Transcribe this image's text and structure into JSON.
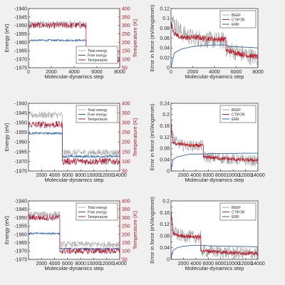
{
  "figure": {
    "background": "#f0f0f0",
    "axes_background": "#ffffff",
    "colors": {
      "total": "#b0b0b0",
      "free": "#1f5fb5",
      "temp": "#b0203a",
      "beef": "#a8a8a8",
      "ctifor": "#c0202e",
      "err": "#2f66b8",
      "right_axis": "#a61c2a"
    }
  },
  "chart_data": [
    {
      "type": "line",
      "xlabel": "Molecular-dynamics step",
      "ylabel": "Energy (eV)",
      "y2label": "Temperature (K)",
      "xlim": [
        0,
        8000
      ],
      "xticks": [
        0,
        2000,
        4000,
        6000,
        8000
      ],
      "ylim": [
        -1975,
        -1940
      ],
      "yticks": [
        -1975,
        -1970,
        -1965,
        -1960,
        -1955,
        -1950,
        -1945,
        -1940
      ],
      "y2lim": [
        50,
        400
      ],
      "y2ticks": [
        50,
        100,
        150,
        200,
        250,
        300,
        350,
        400
      ],
      "legend": {
        "position": "bottom-right",
        "entries": [
          "Total energy",
          "Free energy",
          "Temperature"
        ]
      },
      "switch_x": 5050,
      "series": [
        {
          "name": "Total energy",
          "axis": "left",
          "x": [
            0,
            5050,
            5050,
            8000
          ],
          "y": [
            -1949,
            -1949,
            -1966.3,
            -1966.3
          ],
          "noise": 1.8
        },
        {
          "name": "Free energy",
          "axis": "left",
          "x": [
            0,
            5050,
            5050,
            8000
          ],
          "y": [
            -1958.8,
            -1958.8,
            -1969.2,
            -1969.2
          ],
          "noise": 0.6
        },
        {
          "name": "Temperature",
          "axis": "right",
          "x": [
            0,
            5050,
            5050,
            8000
          ],
          "y": [
            300,
            300,
            100,
            100
          ],
          "noise": 18
        }
      ]
    },
    {
      "type": "line",
      "xlabel": "Molecular-dynamics step",
      "ylabel": "Error in force (eV/Angstrom)",
      "xlim": [
        0,
        8000
      ],
      "xticks": [
        0,
        2000,
        4000,
        6000,
        8000
      ],
      "ylim": [
        0,
        0.12
      ],
      "yticks": [
        0,
        0.02,
        0.04,
        0.06,
        0.08,
        0.1,
        0.12
      ],
      "legend": {
        "position": "top-right",
        "entries": [
          "BEEF",
          "CTIFOR",
          "ERR"
        ]
      },
      "switch_x": 5050,
      "series": [
        {
          "name": "BEEF",
          "x": [
            0,
            300,
            1000,
            2000,
            3000,
            4000,
            5050,
            5050,
            6000,
            7000,
            8000
          ],
          "y": [
            0.1,
            0.09,
            0.07,
            0.06,
            0.058,
            0.055,
            0.055,
            0.04,
            0.032,
            0.025,
            0.02
          ],
          "noise": 0.018
        },
        {
          "name": "CTIFOR",
          "x": [
            0,
            300,
            1000,
            2000,
            3000,
            4000,
            5050,
            5050,
            6000,
            7000,
            8000
          ],
          "y": [
            0.09,
            0.07,
            0.06,
            0.062,
            0.06,
            0.058,
            0.058,
            0.035,
            0.03,
            0.025,
            0.022
          ],
          "noise": 0.005
        },
        {
          "name": "ERR",
          "x": [
            0,
            300,
            1000,
            2000,
            3000,
            4000,
            5050,
            5500,
            6500,
            7500,
            8000
          ],
          "y": [
            0.0,
            0.03,
            0.038,
            0.043,
            0.045,
            0.046,
            0.046,
            0.043,
            0.042,
            0.041,
            0.04
          ],
          "noise": 0
        }
      ]
    },
    {
      "type": "line",
      "xlabel": "Molecular-dynamics step",
      "ylabel": "Energy (eV)",
      "y2label": "Temperature (K)",
      "xlim": [
        0,
        14000
      ],
      "xticks": [
        2000,
        4000,
        6000,
        8000,
        10000,
        12000,
        14000
      ],
      "ylim": [
        -1975,
        -1940
      ],
      "yticks": [
        -1975,
        -1970,
        -1965,
        -1960,
        -1955,
        -1950,
        -1945,
        -1940
      ],
      "y2lim": [
        50,
        400
      ],
      "y2ticks": [
        50,
        100,
        150,
        200,
        250,
        300,
        350,
        400
      ],
      "legend": {
        "position": "top-right",
        "entries": [
          "Total energy",
          "Free energy",
          "Temperature"
        ]
      },
      "switch_x": 5200,
      "series": [
        {
          "name": "Total energy",
          "axis": "left",
          "x": [
            0,
            5200,
            5200,
            14000
          ],
          "y": [
            -1946,
            -1946,
            -1965.5,
            -1965.5
          ],
          "noise": 1.8
        },
        {
          "name": "Free energy",
          "axis": "left",
          "x": [
            0,
            5200,
            5200,
            14000
          ],
          "y": [
            -1955.5,
            -1955.5,
            -1967.5,
            -1967.5
          ],
          "noise": 0.6
        },
        {
          "name": "Temperature",
          "axis": "right",
          "x": [
            0,
            5200,
            5200,
            14000
          ],
          "y": [
            290,
            290,
            100,
            100
          ],
          "noise": 18
        }
      ]
    },
    {
      "type": "line",
      "xlabel": "Molecular-dynamics step",
      "ylabel": "Error in force (eV/Angstrom)",
      "xlim": [
        0,
        14000
      ],
      "xticks": [
        2000,
        4000,
        6000,
        8000,
        10000,
        12000,
        14000
      ],
      "ylim": [
        0,
        0.24
      ],
      "yticks": [
        0,
        0.02,
        0.04,
        0.06,
        0.08,
        0.1,
        0.12,
        0.14,
        0.16,
        0.18,
        0.2,
        0.22,
        0.24
      ],
      "ytick_labels": [
        "0",
        "",
        "0.04",
        "",
        "0.08",
        "",
        "0.12",
        "",
        "0.16",
        "",
        "0.2",
        "",
        "0.24"
      ],
      "legend": {
        "position": "top-right",
        "entries": [
          "BEEF",
          "CTIFOR",
          "ERR"
        ]
      },
      "switch_x": 5200,
      "series": [
        {
          "name": "BEEF",
          "x": [
            0,
            300,
            1000,
            2000,
            3000,
            4000,
            5200,
            5200,
            8000,
            11000,
            14000
          ],
          "y": [
            0.16,
            0.12,
            0.1,
            0.09,
            0.09,
            0.09,
            0.09,
            0.05,
            0.045,
            0.04,
            0.035
          ],
          "noise": 0.02
        },
        {
          "name": "CTIFOR",
          "x": [
            0,
            300,
            1000,
            2000,
            3000,
            4000,
            5200,
            5200,
            8000,
            11000,
            14000
          ],
          "y": [
            0.18,
            0.1,
            0.095,
            0.095,
            0.09,
            0.09,
            0.09,
            0.05,
            0.045,
            0.04,
            0.038
          ],
          "noise": 0.006
        },
        {
          "name": "ERR",
          "x": [
            0,
            300,
            1000,
            2000,
            3000,
            4000,
            5200,
            6500,
            9000,
            12000,
            14000
          ],
          "y": [
            0.0,
            0.04,
            0.05,
            0.055,
            0.06,
            0.06,
            0.06,
            0.062,
            0.062,
            0.063,
            0.063
          ],
          "noise": 0
        }
      ]
    },
    {
      "type": "line",
      "xlabel": "Molecular-dynamics step",
      "ylabel": "Energy (eV)",
      "y2label": "Temperature (K)",
      "xlim": [
        0,
        14000
      ],
      "xticks": [
        2000,
        4000,
        6000,
        8000,
        10000,
        12000,
        14000
      ],
      "ylim": [
        -1975,
        -1940
      ],
      "yticks": [
        -1975,
        -1970,
        -1965,
        -1960,
        -1955,
        -1950,
        -1945,
        -1940
      ],
      "y2lim": [
        50,
        400
      ],
      "y2ticks": [
        50,
        100,
        150,
        200,
        250,
        300,
        350,
        400
      ],
      "legend": {
        "position": "top-right",
        "entries": [
          "Total energy",
          "Free energy",
          "Temperature"
        ]
      },
      "switch_x": 4800,
      "series": [
        {
          "name": "Total energy",
          "axis": "left",
          "x": [
            0,
            4800,
            4800,
            14000
          ],
          "y": [
            -1948,
            -1948,
            -1966,
            -1966
          ],
          "noise": 1.8
        },
        {
          "name": "Free energy",
          "axis": "left",
          "x": [
            0,
            4800,
            4800,
            14000
          ],
          "y": [
            -1959.5,
            -1959.5,
            -1968.7,
            -1968.7
          ],
          "noise": 0.6
        },
        {
          "name": "Temperature",
          "axis": "right",
          "x": [
            0,
            4800,
            4800,
            14000
          ],
          "y": [
            300,
            300,
            100,
            100
          ],
          "noise": 18
        }
      ]
    },
    {
      "type": "line",
      "xlabel": "Molecular-dynamics step",
      "ylabel": "Error in force (eV/Angstrom)",
      "xlim": [
        0,
        14000
      ],
      "xticks": [
        2000,
        4000,
        6000,
        8000,
        10000,
        12000,
        14000
      ],
      "ylim": [
        0,
        0.2
      ],
      "yticks": [
        0,
        0.02,
        0.04,
        0.06,
        0.08,
        0.1,
        0.12,
        0.14,
        0.16,
        0.18,
        0.2
      ],
      "ytick_labels": [
        "0",
        "",
        "0.04",
        "",
        "0.08",
        "",
        "0.12",
        "",
        "0.16",
        "",
        "0.2"
      ],
      "legend": {
        "position": "top-right",
        "entries": [
          "BEEF",
          "CTIFOR",
          "ERR"
        ]
      },
      "switch_x": 4800,
      "series": [
        {
          "name": "BEEF",
          "x": [
            0,
            300,
            1000,
            2000,
            3000,
            4000,
            4800,
            4800,
            8000,
            11000,
            14000
          ],
          "y": [
            0.16,
            0.1,
            0.085,
            0.08,
            0.078,
            0.075,
            0.075,
            0.03,
            0.025,
            0.022,
            0.02
          ],
          "noise": 0.022
        },
        {
          "name": "CTIFOR",
          "x": [
            0,
            300,
            1000,
            2000,
            3000,
            4000,
            4800,
            4800,
            8000,
            11000,
            14000
          ],
          "y": [
            0.17,
            0.09,
            0.082,
            0.08,
            0.078,
            0.077,
            0.077,
            0.03,
            0.025,
            0.022,
            0.02
          ],
          "noise": 0.006
        },
        {
          "name": "ERR",
          "x": [
            0,
            300,
            1000,
            2000,
            3000,
            4000,
            4800,
            6500,
            9000,
            12000,
            14000
          ],
          "y": [
            0.0,
            0.03,
            0.04,
            0.045,
            0.047,
            0.048,
            0.048,
            0.046,
            0.045,
            0.044,
            0.043
          ],
          "noise": 0
        }
      ]
    }
  ]
}
